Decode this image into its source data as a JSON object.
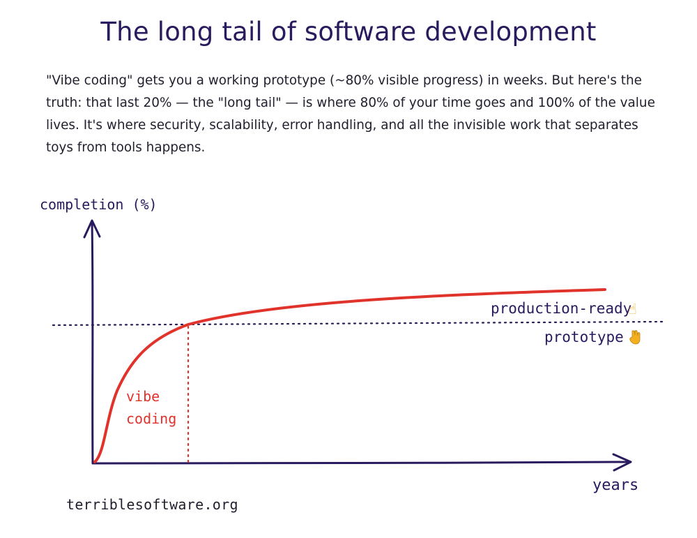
{
  "header": {
    "title": "The long tail of software development"
  },
  "intro": {
    "text": "\"Vibe coding\" gets you a working prototype (~80% visible progress) in weeks. But here's the truth: that last 20% — the \"long tail\" — is where 80% of your time goes and 100% of the value lives. It's where security, scalability, error handling, and all the invisible work that separates toys from tools happens."
  },
  "diagram": {
    "y_axis_label": "completion (%)",
    "x_axis_label": "years",
    "region_label_line1": "vibe",
    "region_label_line2": "coding",
    "upper_label": "production-ready",
    "upper_emoji": "☝",
    "lower_label": "prototype",
    "lower_emoji": "👇",
    "colors": {
      "ink": "#2a1a5e",
      "curve": "#e0332b",
      "emoji": "#f2b01e"
    }
  },
  "footer": {
    "site": "terriblesoftware.org"
  }
}
